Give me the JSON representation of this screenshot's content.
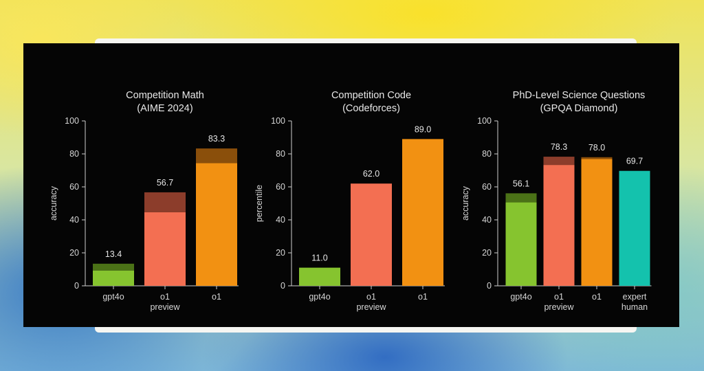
{
  "chart_data": [
    {
      "type": "bar",
      "title": "Competition Math",
      "subtitle": "(AIME 2024)",
      "ylabel": "accuracy",
      "ylim": [
        0,
        100
      ],
      "yticks": [
        0,
        20,
        40,
        60,
        80,
        100
      ],
      "categories": [
        [
          "gpt4o"
        ],
        [
          "o1",
          "preview"
        ],
        [
          "o1"
        ]
      ],
      "value_labels": [
        "13.4",
        "56.7",
        "83.3"
      ],
      "values": [
        13.4,
        56.7,
        83.3
      ],
      "base_values": [
        9.3,
        44.6,
        74.4
      ],
      "colors": [
        "#86c42f",
        "#f36f52",
        "#f29112"
      ],
      "top_colors": [
        "#4b7217",
        "#8c3d2b",
        "#8a4f0b"
      ]
    },
    {
      "type": "bar",
      "title": "Competition Code",
      "subtitle": "(Codeforces)",
      "ylabel": "percentile",
      "ylim": [
        0,
        100
      ],
      "yticks": [
        0,
        20,
        40,
        60,
        80,
        100
      ],
      "categories": [
        [
          "gpt4o"
        ],
        [
          "o1",
          "preview"
        ],
        [
          "o1"
        ]
      ],
      "value_labels": [
        "11.0",
        "62.0",
        "89.0"
      ],
      "values": [
        11.0,
        62.0,
        89.0
      ],
      "base_values": [
        11.0,
        62.0,
        89.0
      ],
      "colors": [
        "#86c42f",
        "#f36f52",
        "#f29112"
      ],
      "top_colors": [
        "#4b7217",
        "#8c3d2b",
        "#8a4f0b"
      ]
    },
    {
      "type": "bar",
      "title": "PhD-Level Science Questions",
      "subtitle": "(GPQA Diamond)",
      "ylabel": "accuracy",
      "ylim": [
        0,
        100
      ],
      "yticks": [
        0,
        20,
        40,
        60,
        80,
        100
      ],
      "categories": [
        [
          "gpt4o"
        ],
        [
          "o1",
          "preview"
        ],
        [
          "o1"
        ],
        [
          "expert",
          "human"
        ]
      ],
      "value_labels": [
        "56.1",
        "78.3",
        "78.0",
        "69.7"
      ],
      "values": [
        56.1,
        78.3,
        78.0,
        69.7
      ],
      "base_values": [
        50.6,
        73.3,
        76.9,
        69.7
      ],
      "colors": [
        "#86c42f",
        "#f36f52",
        "#f29112",
        "#14c2ad"
      ],
      "top_colors": [
        "#4b7217",
        "#8c3d2b",
        "#8a4f0b",
        "#0d7d70"
      ]
    }
  ]
}
